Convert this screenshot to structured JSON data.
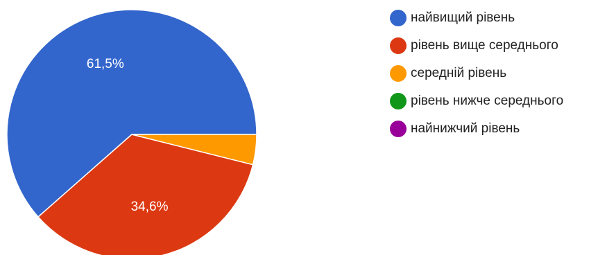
{
  "chart_data": {
    "type": "pie",
    "title": "",
    "series": [
      {
        "name": "найвищий рівень",
        "value": 61.5,
        "color": "#3366cc",
        "label": "61,5%"
      },
      {
        "name": "рівень вище середнього",
        "value": 34.6,
        "color": "#dc3912",
        "label": "34,6%"
      },
      {
        "name": "середній рівень",
        "value": 3.9,
        "color": "#ff9900",
        "label": ""
      },
      {
        "name": "рівень нижче середнього",
        "value": 0,
        "color": "#109618",
        "label": ""
      },
      {
        "name": "найнижчий рівень",
        "value": 0,
        "color": "#990099",
        "label": ""
      }
    ],
    "legend_position": "right"
  }
}
